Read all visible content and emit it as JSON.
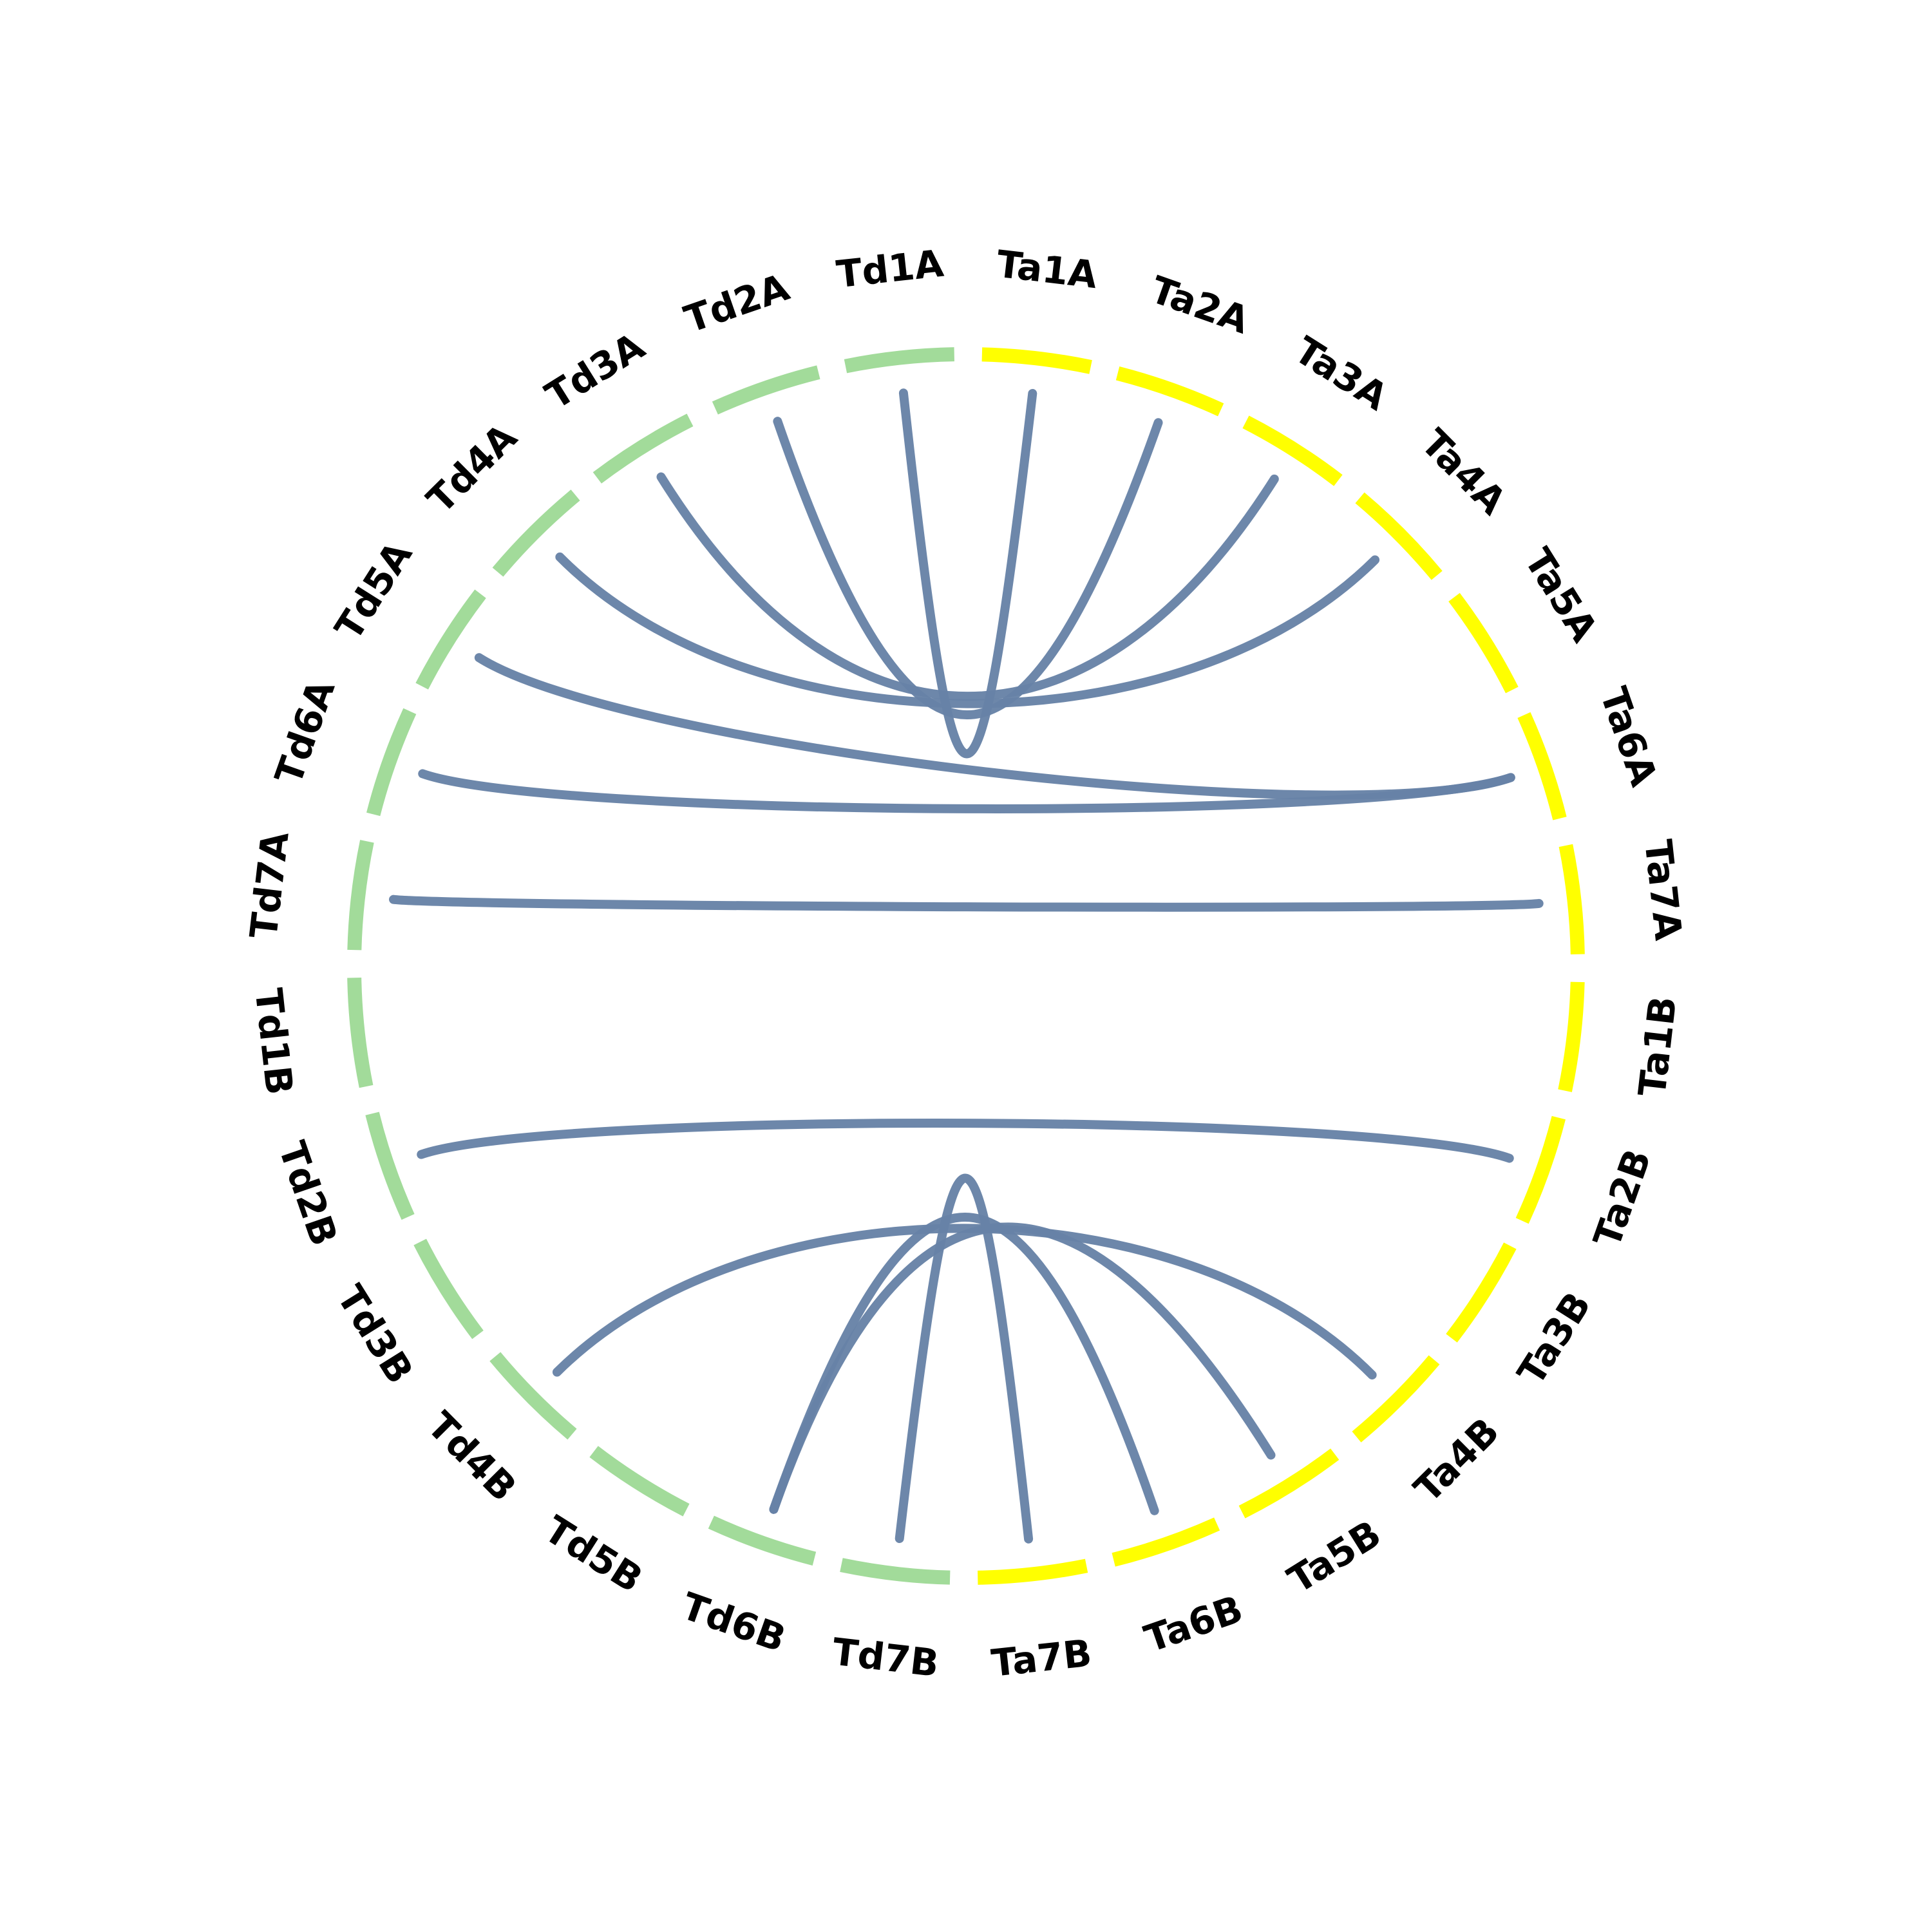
{
  "chart_data": {
    "type": "chord",
    "title": "",
    "colors": {
      "Td": "#a2db9a",
      "Ta": "#ffff00",
      "link": "#6782a7"
    },
    "chromosomes": [
      {
        "name": "Ta1A",
        "genome": "Ta"
      },
      {
        "name": "Ta2A",
        "genome": "Ta"
      },
      {
        "name": "Ta3A",
        "genome": "Ta"
      },
      {
        "name": "Ta4A",
        "genome": "Ta"
      },
      {
        "name": "Ta5A",
        "genome": "Ta"
      },
      {
        "name": "Ta6A",
        "genome": "Ta"
      },
      {
        "name": "Ta7A",
        "genome": "Ta"
      },
      {
        "name": "Ta1B",
        "genome": "Ta"
      },
      {
        "name": "Ta2B",
        "genome": "Ta"
      },
      {
        "name": "Ta3B",
        "genome": "Ta"
      },
      {
        "name": "Ta4B",
        "genome": "Ta"
      },
      {
        "name": "Ta5B",
        "genome": "Ta"
      },
      {
        "name": "Ta6B",
        "genome": "Ta"
      },
      {
        "name": "Ta7B",
        "genome": "Ta"
      },
      {
        "name": "Td7B",
        "genome": "Td"
      },
      {
        "name": "Td6B",
        "genome": "Td"
      },
      {
        "name": "Td5B",
        "genome": "Td"
      },
      {
        "name": "Td4B",
        "genome": "Td"
      },
      {
        "name": "Td3B",
        "genome": "Td"
      },
      {
        "name": "Td2B",
        "genome": "Td"
      },
      {
        "name": "Td1B",
        "genome": "Td"
      },
      {
        "name": "Td7A",
        "genome": "Td"
      },
      {
        "name": "Td6A",
        "genome": "Td"
      },
      {
        "name": "Td5A",
        "genome": "Td"
      },
      {
        "name": "Td4A",
        "genome": "Td"
      },
      {
        "name": "Td3A",
        "genome": "Td"
      },
      {
        "name": "Td2A",
        "genome": "Td"
      },
      {
        "name": "Td1A",
        "genome": "Td"
      }
    ],
    "links": [
      {
        "source": "Td1A",
        "target": "Ta1A"
      },
      {
        "source": "Td2A",
        "target": "Ta2A"
      },
      {
        "source": "Td3A",
        "target": "Ta3A"
      },
      {
        "source": "Td4A",
        "target": "Ta4A"
      },
      {
        "source": "Td5A",
        "target": "Ta6A"
      },
      {
        "source": "Td6A",
        "target": "Ta6A"
      },
      {
        "source": "Td7A",
        "target": "Ta7A"
      },
      {
        "source": "Td2B",
        "target": "Ta2B"
      },
      {
        "source": "Td4B",
        "target": "Ta4B"
      },
      {
        "source": "Td6B",
        "target": "Ta6B"
      },
      {
        "source": "Td6B",
        "target": "Ta5B"
      },
      {
        "source": "Td7B",
        "target": "Ta7B"
      }
    ]
  }
}
